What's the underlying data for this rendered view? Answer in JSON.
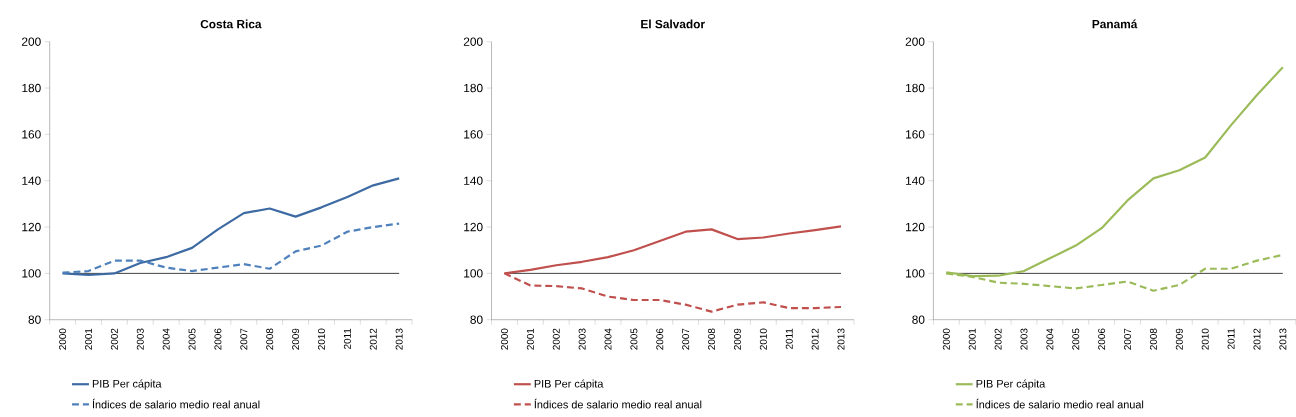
{
  "chart_data": [
    {
      "type": "line",
      "title": "Costa Rica",
      "categories": [
        "2000",
        "2001",
        "2002",
        "2003",
        "2004",
        "2005",
        "2006",
        "2007",
        "2008",
        "2009",
        "2010",
        "2011",
        "2012",
        "2013"
      ],
      "series": [
        {
          "name": "PIB Per cápita",
          "color": "#3d6aa3",
          "line_style": "solid",
          "values": [
            100,
            99.3,
            100,
            104.5,
            107,
            111,
            119,
            126,
            128,
            124.5,
            128.5,
            133,
            138,
            141
          ]
        },
        {
          "name": "Índices de salario medio real anual",
          "color": "#4f81bd",
          "line_style": "dashed",
          "values": [
            100.3,
            101,
            105.5,
            105.5,
            102.5,
            101,
            102.5,
            104,
            102,
            109.5,
            112,
            118,
            120,
            121.5
          ]
        }
      ],
      "ylim": [
        80,
        200
      ],
      "yticks": [
        80,
        100,
        120,
        140,
        160,
        180,
        200
      ],
      "ref_lines": [
        {
          "axis": "y",
          "value": 100,
          "color": "#404040"
        }
      ],
      "legend": "bottom",
      "grid": false
    },
    {
      "type": "line",
      "title": "El Salvador",
      "categories": [
        "2000",
        "2001",
        "2002",
        "2003",
        "2004",
        "2005",
        "2006",
        "2007",
        "2008",
        "2009",
        "2010",
        "2011",
        "2012",
        "2013"
      ],
      "series": [
        {
          "name": "PIB Per cápita",
          "color": "#c0504d",
          "line_style": "solid",
          "values": [
            100,
            101.5,
            103.5,
            105,
            107,
            110,
            114,
            118,
            119,
            114.8,
            115.5,
            117.2,
            118.7,
            120.3
          ]
        },
        {
          "name": "Índices de salario medio real anual",
          "color": "#c0504d",
          "line_style": "dashed",
          "values": [
            100,
            94.8,
            94.5,
            93.5,
            90,
            88.5,
            88.5,
            86.5,
            83.5,
            86.5,
            87.5,
            85,
            85,
            85.5
          ]
        }
      ],
      "ylim": [
        80,
        200
      ],
      "yticks": [
        80,
        100,
        120,
        140,
        160,
        180,
        200
      ],
      "ref_lines": [
        {
          "axis": "y",
          "value": 100,
          "color": "#404040"
        }
      ],
      "legend": "bottom",
      "grid": false
    },
    {
      "type": "line",
      "title": "Panamá",
      "categories": [
        "2000",
        "2001",
        "2002",
        "2003",
        "2004",
        "2005",
        "2006",
        "2007",
        "2008",
        "2009",
        "2010",
        "2011",
        "2012",
        "2013"
      ],
      "series": [
        {
          "name": "PIB Per cápita",
          "color": "#9bbb59",
          "line_style": "solid",
          "values": [
            100.5,
            98.8,
            99,
            101,
            106.5,
            112,
            119.5,
            131.5,
            141,
            144.5,
            150,
            164,
            177,
            189
          ]
        },
        {
          "name": "Índices de salario medio real anual",
          "color": "#9bbb59",
          "line_style": "dashed",
          "values": [
            100,
            98.5,
            96,
            95.5,
            94.5,
            93.5,
            95,
            96.5,
            92.5,
            95,
            102,
            102,
            105.5,
            108
          ]
        }
      ],
      "ylim": [
        80,
        200
      ],
      "yticks": [
        80,
        100,
        120,
        140,
        160,
        180,
        200
      ],
      "ref_lines": [
        {
          "axis": "y",
          "value": 100,
          "color": "#404040"
        }
      ],
      "legend": "bottom",
      "grid": false
    }
  ]
}
